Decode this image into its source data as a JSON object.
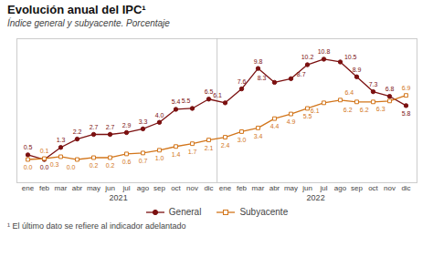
{
  "chart_data": {
    "type": "line",
    "title": "Evolución anual del IPC¹",
    "subtitle": "Índice general y subyacente. Porcentaje",
    "footnote": "¹ El último dato se refiere al indicador adelantado",
    "categories": [
      "ene",
      "feb",
      "mar",
      "abr",
      "may",
      "jun",
      "jul",
      "ago",
      "sep",
      "oct",
      "nov",
      "dic",
      "ene",
      "feb",
      "mar",
      "abr",
      "may",
      "jun",
      "jul",
      "ago",
      "sep",
      "oct",
      "nov",
      "dic"
    ],
    "annotations": [
      "2021",
      "2022"
    ],
    "series": [
      {
        "name": "General",
        "color": "#7B1010",
        "marker": "circle",
        "values": [
          0.5,
          0.0,
          1.3,
          2.2,
          2.7,
          2.7,
          2.9,
          3.3,
          4.0,
          5.4,
          5.5,
          6.5,
          6.1,
          7.6,
          9.8,
          8.3,
          8.7,
          10.2,
          10.8,
          10.5,
          8.9,
          7.3,
          6.8,
          5.8
        ],
        "value_labels": [
          "0.5",
          "0.0",
          "1.3",
          "2.2",
          "2.7",
          "2.7",
          "2.9",
          "3.3",
          "4.0",
          "5.4",
          "5.5",
          "6.5",
          "6.1",
          "7.6",
          "9.8",
          "8.3",
          "8.7",
          "10.2",
          "10.8",
          "10.5",
          "8.9",
          "7.3",
          "6.8",
          "5.8"
        ]
      },
      {
        "name": "Subyacente",
        "color": "#D2751A",
        "marker": "square",
        "values": [
          0.0,
          0.1,
          0.3,
          0.0,
          0.2,
          0.2,
          0.6,
          0.7,
          1.0,
          1.4,
          1.7,
          2.1,
          2.4,
          3.0,
          3.4,
          4.4,
          4.9,
          5.5,
          6.1,
          6.4,
          6.2,
          6.2,
          6.3,
          6.9
        ],
        "value_labels": [
          "0.0",
          "0.1",
          "0.3",
          "0.0",
          "0.2",
          "0.2",
          "0.6",
          "0.7",
          "1.0",
          "1.4",
          "1.7",
          "2.1",
          "2.4",
          "3.0",
          "3.4",
          "4.4",
          "4.9",
          "5.5",
          "6.1",
          "6.4",
          "6.2",
          "6.2",
          "6.3",
          "6.9"
        ]
      }
    ],
    "ylim": [
      -2.5,
      13.0
    ],
    "grid": false,
    "legend": "bottom",
    "data_labels": true,
    "tick_labels": "x"
  }
}
